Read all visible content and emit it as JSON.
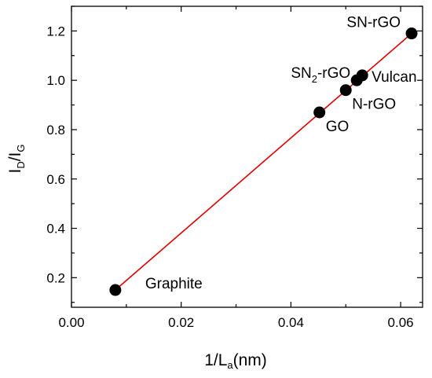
{
  "chart_data": {
    "type": "scatter",
    "title": "",
    "xlabel": {
      "main": "1/L",
      "sub": "a",
      "unit": "(nm)"
    },
    "ylabel": {
      "part1": "I",
      "sub1": "D",
      "part2": "/I",
      "sub2": "G"
    },
    "xlim": [
      0.0,
      0.064
    ],
    "ylim": [
      0.08,
      1.3
    ],
    "grid": false,
    "legend": "none",
    "x_ticks": [
      {
        "value": 0.0,
        "label": "0.00"
      },
      {
        "value": 0.02,
        "label": "0.02"
      },
      {
        "value": 0.04,
        "label": "0.04"
      },
      {
        "value": 0.06,
        "label": "0.06"
      }
    ],
    "y_ticks": [
      {
        "value": 0.2,
        "label": "0.2"
      },
      {
        "value": 0.4,
        "label": "0.4"
      },
      {
        "value": 0.6,
        "label": "0.6"
      },
      {
        "value": 0.8,
        "label": "0.8"
      },
      {
        "value": 1.0,
        "label": "1.0"
      },
      {
        "value": 1.2,
        "label": "1.2"
      }
    ],
    "points": [
      {
        "x": 0.008,
        "y": 0.15,
        "label": "Graphite",
        "anchor": "right"
      },
      {
        "x": 0.0452,
        "y": 0.87,
        "label": "GO",
        "anchor": "below-right"
      },
      {
        "x": 0.05,
        "y": 0.96,
        "label": "N-rGO",
        "anchor": "below-right"
      },
      {
        "x": 0.052,
        "y": 1.0,
        "label": "SN2-rGO",
        "label_parts": [
          "SN",
          "2",
          "-rGO"
        ],
        "anchor": "left"
      },
      {
        "x": 0.053,
        "y": 1.02,
        "label": "Vulcan",
        "anchor": "right"
      },
      {
        "x": 0.062,
        "y": 1.19,
        "label": "SN-rGO",
        "anchor": "above-left"
      }
    ],
    "fit_line": {
      "x": [
        0.008,
        0.062
      ],
      "y": [
        0.15,
        1.19
      ]
    },
    "colors": {
      "points": "#000000",
      "fit_line": "#e00000",
      "axes": "#000000"
    }
  }
}
